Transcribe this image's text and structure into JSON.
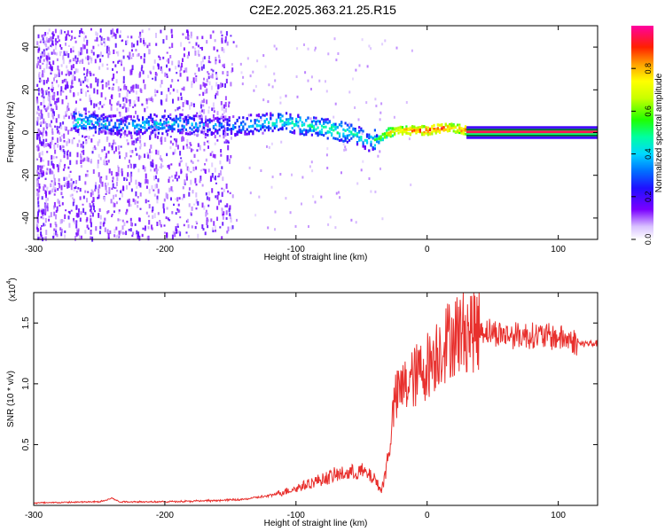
{
  "title": "C2E2.2025.363.21.25.R15",
  "chart_data": [
    {
      "type": "heatmap",
      "xlabel": "Height of straight line (km)",
      "ylabel": "Frequency (Hz)",
      "xlim": [
        -300,
        130
      ],
      "ylim": [
        -50,
        50
      ],
      "xticks": [
        -300,
        -200,
        -100,
        0,
        100
      ],
      "yticks": [
        -40,
        -20,
        0,
        20,
        40
      ],
      "colorbar": {
        "label": "Normalized spectral amplitude",
        "range": [
          0,
          1
        ],
        "ticks": [
          0.0,
          0.2,
          0.4,
          0.6,
          0.8
        ],
        "tick_labels": [
          "0.0",
          "0.2",
          "0.4",
          "0.6",
          "0.8"
        ]
      },
      "ridge": {
        "x": [
          -270,
          -250,
          -230,
          -210,
          -190,
          -170,
          -150,
          -130,
          -110,
          -90,
          -70,
          -55,
          -45,
          -38,
          -30,
          -20,
          -10,
          0,
          10,
          20,
          30,
          60,
          100,
          130
        ],
        "frequency": [
          5,
          4,
          3,
          4,
          4,
          3,
          3,
          4,
          5,
          3,
          1,
          -1,
          -4,
          -3,
          0,
          1,
          1,
          1,
          2,
          2,
          1,
          0.5,
          0.5,
          0.5
        ],
        "amplitude": [
          0.45,
          0.4,
          0.35,
          0.4,
          0.4,
          0.35,
          0.35,
          0.4,
          0.45,
          0.45,
          0.5,
          0.45,
          0.4,
          0.55,
          0.75,
          0.8,
          0.85,
          0.9,
          0.9,
          0.8,
          0.9,
          0.92,
          0.92,
          0.92
        ]
      }
    },
    {
      "type": "line",
      "xlabel": "Height of straight line (km)",
      "ylabel": "SNR (10 * v/v)",
      "multiplier_label": "(x10",
      "multiplier_exp": "4",
      "xlim": [
        -300,
        130
      ],
      "ylim": [
        0,
        1.75
      ],
      "xticks": [
        -300,
        -200,
        -100,
        0,
        100
      ],
      "yticks": [
        0.5,
        1.0,
        1.5
      ],
      "ytick_labels": [
        "0.5",
        "1.0",
        "1.5"
      ],
      "line_color": "#e8302d",
      "envelope": {
        "x": [
          -300,
          -250,
          -240,
          -235,
          -200,
          -160,
          -140,
          -120,
          -100,
          -90,
          -70,
          -50,
          -40,
          -35,
          -32,
          -28,
          -25,
          -20,
          -10,
          0,
          10,
          20,
          30,
          40,
          60,
          80,
          100,
          110,
          115,
          130
        ],
        "y": [
          0.02,
          0.03,
          0.06,
          0.03,
          0.03,
          0.04,
          0.05,
          0.08,
          0.14,
          0.18,
          0.25,
          0.28,
          0.22,
          0.12,
          0.25,
          0.55,
          0.85,
          0.95,
          1.05,
          1.15,
          1.3,
          1.4,
          1.45,
          1.45,
          1.4,
          1.4,
          1.38,
          1.36,
          1.33,
          1.33
        ]
      }
    }
  ]
}
